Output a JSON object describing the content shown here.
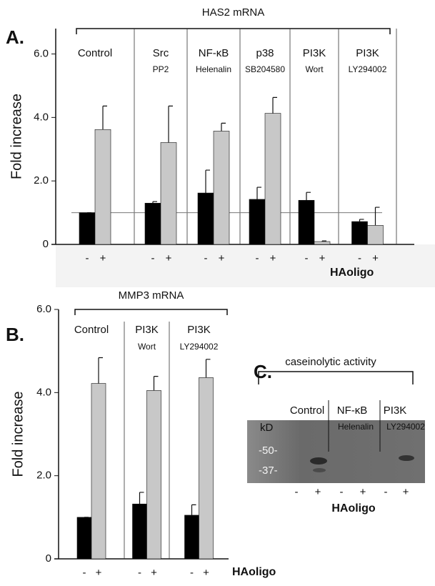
{
  "chart_data": [
    {
      "type": "bar",
      "panel": "A.",
      "title": "HAS2 mRNA",
      "ylabel": "Fold increase",
      "xlabel": "HAoligo",
      "groups": [
        {
          "name": "Control"
        },
        {
          "name": "Src",
          "inhibitor": "PP2"
        },
        {
          "name": "NF-κB",
          "inhibitor": "Helenalin"
        },
        {
          "name": "p38",
          "inhibitor": "SB204580"
        },
        {
          "name": "PI3K",
          "inhibitor": "Wort"
        },
        {
          "name": "PI3K",
          "inhibitor": "LY294002"
        }
      ],
      "series": [
        {
          "name": "-",
          "color": "#000000",
          "values": [
            1.0,
            1.3,
            1.62,
            1.42,
            1.39,
            0.72
          ],
          "errors": [
            0,
            0.05,
            0.72,
            0.38,
            0.25,
            0.07
          ]
        },
        {
          "name": "+",
          "color": "#c8c8c8",
          "values": [
            3.62,
            3.21,
            3.57,
            4.13,
            0.09,
            0.6
          ],
          "errors": [
            0.74,
            1.15,
            0.25,
            0.5,
            0.02,
            0.57
          ]
        }
      ],
      "ylim": [
        0,
        6.8
      ],
      "yticks": [
        0,
        {
          "value": 2,
          "label": "2.0"
        },
        {
          "value": 4,
          "label": "4.0"
        },
        {
          "value": 6,
          "label": "6.0"
        }
      ],
      "reference_line": 1
    },
    {
      "type": "bar",
      "panel": "B.",
      "title": "MMP3 mRNA",
      "ylabel": "Fold increase",
      "xlabel": "HAoligo",
      "groups": [
        {
          "name": "Control"
        },
        {
          "name": "PI3K",
          "inhibitor": "Wort"
        },
        {
          "name": "PI3K",
          "inhibitor": "LY294002"
        }
      ],
      "series": [
        {
          "name": "-",
          "color": "#000000",
          "values": [
            1.0,
            1.32,
            1.05
          ],
          "errors": [
            0,
            0.28,
            0.25
          ]
        },
        {
          "name": "+",
          "color": "#c8c8c8",
          "values": [
            4.22,
            4.05,
            4.36
          ],
          "errors": [
            0.62,
            0.34,
            0.44
          ]
        }
      ],
      "ylim": [
        0,
        6
      ],
      "yticks": [
        0,
        {
          "value": 2,
          "label": "2.0"
        },
        {
          "value": 4,
          "label": "4.0"
        },
        {
          "value": 6,
          "label": "6.0"
        }
      ]
    }
  ],
  "gel": {
    "panel": "C.",
    "title": "caseinolytic activity",
    "groups": [
      {
        "name": "Control"
      },
      {
        "name": "NF-κB",
        "inhibitor": "Helenalin"
      },
      {
        "name": "PI3K",
        "inhibitor": "LY294002"
      }
    ],
    "unit": "kD",
    "markers": [
      "-50-",
      "-37-"
    ],
    "lanes": [
      "-",
      "+"
    ],
    "xlabel": "HAoligo"
  }
}
